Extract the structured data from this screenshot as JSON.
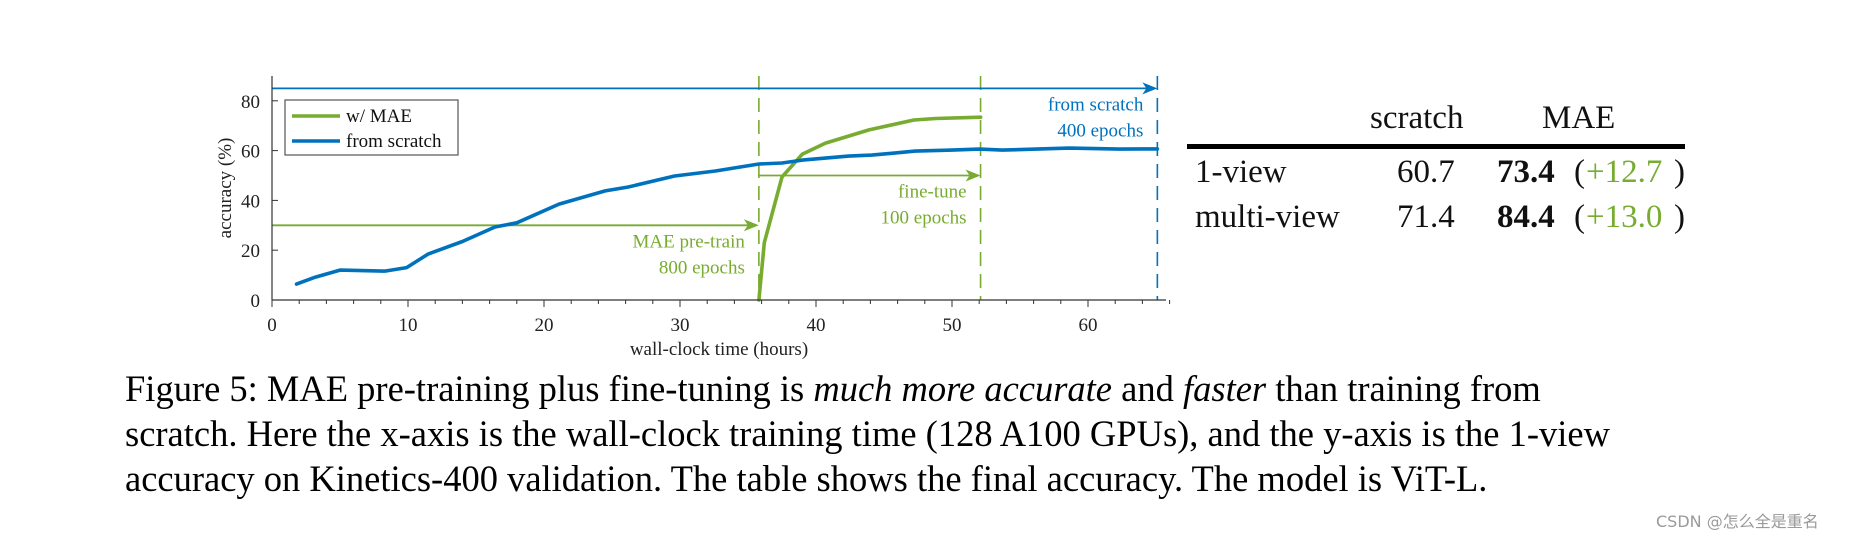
{
  "chart_data": {
    "type": "line",
    "title": "",
    "xlabel": "wall-clock time (hours)",
    "ylabel": "accuracy (%)",
    "xlim": [
      0,
      66
    ],
    "ylim": [
      0,
      90
    ],
    "xticks": [
      0,
      10,
      20,
      30,
      40,
      50,
      60
    ],
    "yticks": [
      0,
      20,
      40,
      60,
      80
    ],
    "grid": false,
    "legend_position": "upper left",
    "legend": [
      "w/ MAE",
      "from scratch"
    ],
    "series": [
      {
        "name": "w/ MAE",
        "color": "#77AC30",
        "x": [
          35.8,
          36.2,
          37.5,
          39.0,
          40.7,
          43.9,
          47.2,
          48.8,
          52.1
        ],
        "y": [
          0,
          23,
          49.4,
          58.6,
          63,
          68.3,
          72.3,
          72.9,
          73.4
        ]
      },
      {
        "name": "from scratch",
        "color": "#0072BD",
        "x": [
          1.8,
          3.2,
          5.0,
          8.3,
          9.9,
          11.5,
          14.0,
          16.4,
          18.0,
          21.1,
          24.5,
          26.2,
          29.6,
          32.6,
          35.8,
          37.5,
          39.0,
          42.4,
          44.1,
          47.3,
          50.0,
          52.0,
          53.7,
          58.6,
          62.3,
          65.1
        ],
        "y": [
          6.4,
          9.2,
          12.0,
          11.6,
          13.0,
          18.5,
          23.5,
          29.3,
          31.0,
          38.5,
          43.8,
          45.4,
          49.8,
          51.8,
          54.6,
          55.0,
          56.2,
          57.8,
          58.2,
          59.8,
          60.2,
          60.6,
          60.2,
          61.0,
          60.6,
          60.7
        ]
      }
    ],
    "annotations": [
      {
        "type": "arrow",
        "color": "#77AC30",
        "x_from": 0,
        "x_to": 35.8,
        "y": 30,
        "label_lines": [
          "MAE pre-train",
          "800 epochs"
        ]
      },
      {
        "type": "arrow",
        "color": "#77AC30",
        "x_from": 35.8,
        "x_to": 52.1,
        "y": 50,
        "label_lines": [
          "fine-tune",
          "100 epochs"
        ]
      },
      {
        "type": "arrow",
        "color": "#0072BD",
        "x_from": 0,
        "x_to": 65.1,
        "y": 85,
        "label_lines": [
          "from scratch",
          "400 epochs"
        ]
      },
      {
        "type": "vline-dashed",
        "color": "#77AC30",
        "x": 35.8
      },
      {
        "type": "vline-dashed",
        "color": "#77AC30",
        "x": 52.1
      },
      {
        "type": "vline-dashed",
        "color": "#0072BD",
        "x": 65.1
      }
    ]
  },
  "table": {
    "headers": [
      "",
      "scratch",
      "MAE"
    ],
    "rows": [
      {
        "label": "1-view",
        "scratch": "60.7",
        "mae": "73.4",
        "gain_open": "(",
        "gain": "+12.7",
        "gain_close": ")"
      },
      {
        "label": "multi-view",
        "scratch": "71.4",
        "mae": "84.4",
        "gain_open": "(",
        "gain": "+13.0",
        "gain_close": ")"
      }
    ]
  },
  "caption": {
    "line1_a": "Figure 5: MAE pre-training plus fine-tuning is ",
    "line1_em1": "much more accurate",
    "line1_b": " and ",
    "line1_em2": "faster",
    "line1_c": " than training from",
    "line2": "scratch. Here the x-axis is the wall-clock training time (128 A100 GPUs), and the y-axis is the 1-view",
    "line3": "accuracy on Kinetics-400 validation. The table shows the final accuracy. The model is ViT-L."
  },
  "watermark": "CSDN @怎么全是重名"
}
